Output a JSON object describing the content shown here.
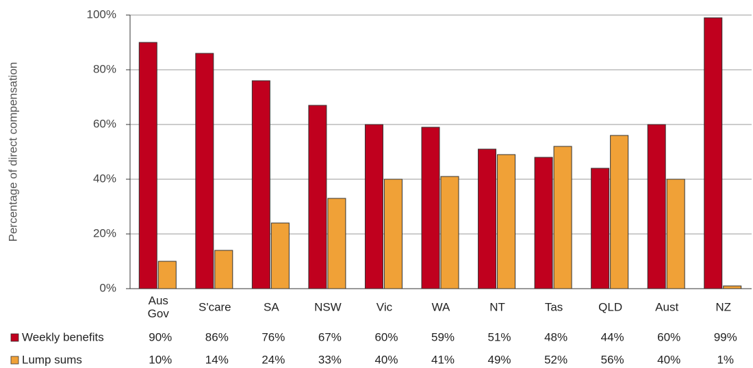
{
  "chart_data": {
    "type": "bar",
    "ylabel": "Percentage  of direct compensation",
    "categories": [
      "Aus Gov",
      "S'care",
      "SA",
      "NSW",
      "Vic",
      "WA",
      "NT",
      "Tas",
      "QLD",
      "Aust",
      "NZ"
    ],
    "series": [
      {
        "name": "Weekly benefits",
        "color": "#c0001e",
        "values": [
          90,
          86,
          76,
          67,
          60,
          59,
          51,
          48,
          44,
          60,
          99
        ],
        "value_labels": [
          "90%",
          "86%",
          "76%",
          "67%",
          "60%",
          "59%",
          "51%",
          "48%",
          "44%",
          "60%",
          "99%"
        ]
      },
      {
        "name": "Lump sums",
        "color": "#f0a137",
        "values": [
          10,
          14,
          24,
          33,
          40,
          41,
          49,
          52,
          56,
          40,
          1
        ],
        "value_labels": [
          "10%",
          "14%",
          "24%",
          "33%",
          "40%",
          "41%",
          "49%",
          "52%",
          "56%",
          "40%",
          "1%"
        ]
      }
    ],
    "ylim": [
      0,
      100
    ],
    "yticks": [
      {
        "value": 0,
        "label": "0%"
      },
      {
        "value": 20,
        "label": "20%"
      },
      {
        "value": 40,
        "label": "40%"
      },
      {
        "value": 60,
        "label": "60%"
      },
      {
        "value": 80,
        "label": "80%"
      },
      {
        "value": 100,
        "label": "100%"
      }
    ],
    "grid": true
  }
}
